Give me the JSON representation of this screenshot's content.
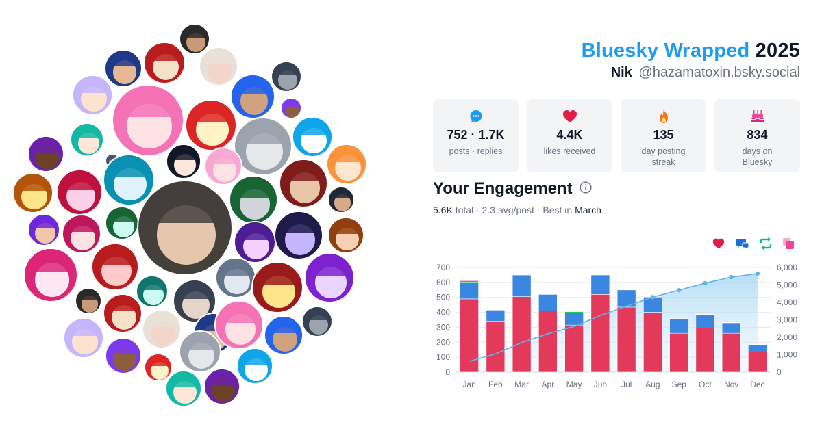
{
  "header": {
    "brand": "Bluesky Wrapped",
    "year": "2025",
    "name": "Nik",
    "handle": "@hazamatoxin.bsky.social"
  },
  "stats": [
    {
      "icon": "chat-bubble-icon",
      "value": "752 · 1.7K",
      "label": "posts · replies",
      "color": "#1d9bf0"
    },
    {
      "icon": "heart-icon",
      "value": "4.4K",
      "label": "likes received",
      "color": "#e11d48"
    },
    {
      "icon": "flame-icon",
      "value": "135",
      "label": "day posting streak",
      "color": "#f97316"
    },
    {
      "icon": "cake-icon",
      "value": "834",
      "label": "days on Bluesky",
      "color": "#ec4899"
    }
  ],
  "engagement": {
    "title": "Your Engagement",
    "total": "5.6K",
    "total_word": "total",
    "avg": "2.3 avg/post",
    "best_prefix": "Best in",
    "best_month": "March",
    "info_icon": "info-icon",
    "legend_icons": [
      {
        "icon": "heart-icon",
        "color": "#e11d48"
      },
      {
        "icon": "reply-icon",
        "color": "#1d6fd6"
      },
      {
        "icon": "repost-icon",
        "color": "#10b981"
      },
      {
        "icon": "quote-icon",
        "color": "#ec4899"
      }
    ]
  },
  "chart_data": {
    "type": "bar",
    "categories": [
      "Jan",
      "Feb",
      "Mar",
      "Apr",
      "May",
      "Jun",
      "Jul",
      "Aug",
      "Sep",
      "Oct",
      "Nov",
      "Dec"
    ],
    "series": [
      {
        "values": [
          490,
          340,
          505,
          410,
          315,
          520,
          435,
          400,
          260,
          295,
          260,
          135
        ],
        "color": "#e3395a"
      },
      {
        "values": [
          110,
          75,
          145,
          110,
          80,
          130,
          115,
          100,
          95,
          90,
          70,
          45
        ],
        "color": "#3a86e0"
      },
      {
        "values": [
          10,
          2,
          2,
          3,
          10,
          3,
          2,
          5,
          2,
          2,
          2,
          2
        ],
        "color": "#22c55e"
      },
      {
        "values": [
          5,
          1,
          1,
          2,
          3,
          2,
          1,
          3,
          1,
          1,
          1,
          1
        ],
        "color": "#ec4899"
      }
    ],
    "cumulative": {
      "values": [
        620,
        1050,
        1700,
        2200,
        2620,
        3250,
        3780,
        4300,
        4700,
        5100,
        5450,
        5650
      ],
      "color": "#60b4e6"
    },
    "ylim": [
      0,
      700
    ],
    "yticks": [
      0,
      100,
      200,
      300,
      400,
      500,
      600,
      700
    ],
    "y2lim": [
      0,
      6000
    ],
    "y2ticks": [
      "0",
      "1,000",
      "2,000",
      "3,000",
      "4,000",
      "5,000",
      "6,000"
    ],
    "grid": true
  },
  "avatars": [
    {
      "c": "#2a2a2a",
      "s": "#c99a7a"
    },
    {
      "c": "#b91c1c",
      "s": "#f5e0c8"
    },
    {
      "c": "#e8e0d8",
      "s": "#f2d6c9"
    },
    {
      "c": "#1e3a8a",
      "s": "#e8b894"
    },
    {
      "c": "#f472b6",
      "s": "#fde2e4"
    },
    {
      "c": "#2563eb",
      "s": "#d1a27e"
    },
    {
      "c": "#374151",
      "s": "#9ca3af"
    },
    {
      "c": "#c4b5fd",
      "s": "#fde2cf"
    },
    {
      "c": "#7c3aed",
      "s": "#8d5e3c"
    },
    {
      "c": "#dc2626",
      "s": "#fef3c7"
    },
    {
      "c": "#9ca3af",
      "s": "#e5e7eb"
    },
    {
      "c": "#0ea5e9",
      "s": "#ffffff"
    },
    {
      "c": "#14b8a6",
      "s": "#fde7d9"
    },
    {
      "c": "#6b21a8",
      "s": "#6b4226"
    },
    {
      "c": "#4b5563",
      "s": "#9ca3af"
    },
    {
      "c": "#111827",
      "s": "#fce7dc"
    },
    {
      "c": "#f9a8d4",
      "s": "#fde2e4"
    },
    {
      "c": "#fb923c",
      "s": "#fde7d0"
    },
    {
      "c": "#b45309",
      "s": "#fde68a"
    },
    {
      "c": "#be123c",
      "s": "#fbcfe8"
    },
    {
      "c": "#0891b2",
      "s": "#e0f2fe"
    },
    {
      "c": "#166534",
      "s": "#d1d5db"
    },
    {
      "c": "#7f1d1d",
      "s": "#e8c4a8"
    },
    {
      "c": "#1f2937",
      "s": "#d6a98a"
    },
    {
      "c": "#6d28d9",
      "s": "#f0c6a8"
    },
    {
      "c": "#be185d",
      "s": "#fde2e4"
    },
    {
      "c": "#166534",
      "s": "#ccfbf1"
    },
    {
      "c": "#44403c",
      "s": "#e7c6ae"
    },
    {
      "c": "#4c1d95",
      "s": "#f5d0fe"
    },
    {
      "c": "#1e1b4b",
      "s": "#c4b5fd"
    },
    {
      "c": "#92400e",
      "s": "#f5d0b5"
    },
    {
      "c": "#db2777",
      "s": "#fce7f3"
    },
    {
      "c": "#b91c1c",
      "s": "#fecaca"
    },
    {
      "c": "#0f766e",
      "s": "#ccfbf1"
    },
    {
      "c": "#374151",
      "s": "#e5d5c8"
    },
    {
      "c": "#64748b",
      "s": "#e2e8f0"
    },
    {
      "c": "#991b1b",
      "s": "#fde68a"
    },
    {
      "c": "#7e22ce",
      "s": "#e9d5ff"
    }
  ]
}
